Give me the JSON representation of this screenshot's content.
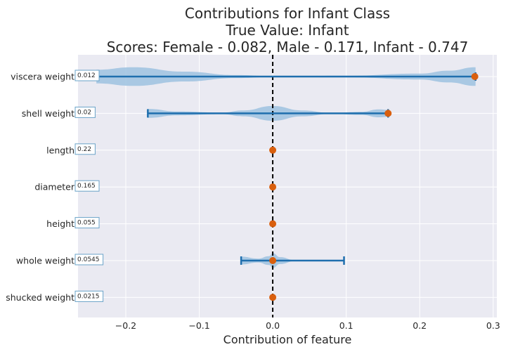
{
  "chart_data": {
    "type": "violin",
    "title_lines": [
      "Contributions for Infant Class",
      "True Value: Infant",
      "Scores: Female - 0.082, Male - 0.171, Infant - 0.747"
    ],
    "xlabel": "Contribution of feature",
    "xlim": [
      -0.265,
      0.305
    ],
    "xticks": [
      -0.2,
      -0.1,
      0.0,
      0.1,
      0.2,
      0.3
    ],
    "xtick_labels": [
      "−0.2",
      "−0.1",
      "0.0",
      "0.1",
      "0.2",
      "0.3"
    ],
    "grid": true,
    "reference_line_x": 0.0,
    "colors": {
      "background": "#eaeaf2",
      "grid": "#ffffff",
      "violin_fill": "#9ec2e0",
      "whisker": "#1f6fae",
      "point": "#d95f0e",
      "ref_line": "#000000",
      "value_box_border": "#6aa3c8"
    },
    "features": [
      {
        "name": "viscera weight",
        "value_label": "0.012",
        "point": 0.275,
        "min": -0.24,
        "max": 0.276,
        "violin": [
          [
            -0.24,
            0.7
          ],
          [
            -0.19,
            0.95
          ],
          [
            -0.12,
            0.5
          ],
          [
            -0.05,
            0.15
          ],
          [
            0.0,
            0.05
          ],
          [
            0.1,
            0.08
          ],
          [
            0.2,
            0.3
          ],
          [
            0.24,
            0.6
          ],
          [
            0.276,
            0.95
          ]
        ]
      },
      {
        "name": "shell weight",
        "value_label": "0.02",
        "point": 0.157,
        "min": -0.17,
        "max": 0.157,
        "violin": [
          [
            -0.17,
            0.45
          ],
          [
            -0.13,
            0.2
          ],
          [
            -0.07,
            0.08
          ],
          [
            -0.04,
            0.3
          ],
          [
            0.0,
            0.75
          ],
          [
            0.04,
            0.3
          ],
          [
            0.08,
            0.05
          ],
          [
            0.12,
            0.15
          ],
          [
            0.145,
            0.4
          ],
          [
            0.157,
            0.35
          ]
        ]
      },
      {
        "name": "length",
        "value_label": "0.22",
        "point": 0.0,
        "min": 0.0,
        "max": 0.0,
        "violin": []
      },
      {
        "name": "diameter",
        "value_label": "0.165",
        "point": 0.0,
        "min": 0.0,
        "max": 0.0,
        "violin": []
      },
      {
        "name": "height",
        "value_label": "0.055",
        "point": 0.0,
        "min": 0.0,
        "max": 0.0,
        "violin": []
      },
      {
        "name": "whole weight",
        "value_label": "0.0545",
        "point": 0.0,
        "min": -0.043,
        "max": 0.097,
        "violin": [
          [
            -0.043,
            0.4
          ],
          [
            -0.02,
            0.2
          ],
          [
            -0.005,
            0.45
          ],
          [
            0.0,
            0.75
          ],
          [
            0.01,
            0.35
          ],
          [
            0.03,
            0.05
          ],
          [
            0.06,
            0.06
          ],
          [
            0.097,
            0.05
          ]
        ]
      },
      {
        "name": "shucked weight",
        "value_label": "0.0215",
        "point": 0.0,
        "min": 0.0,
        "max": 0.0,
        "violin": []
      }
    ]
  }
}
